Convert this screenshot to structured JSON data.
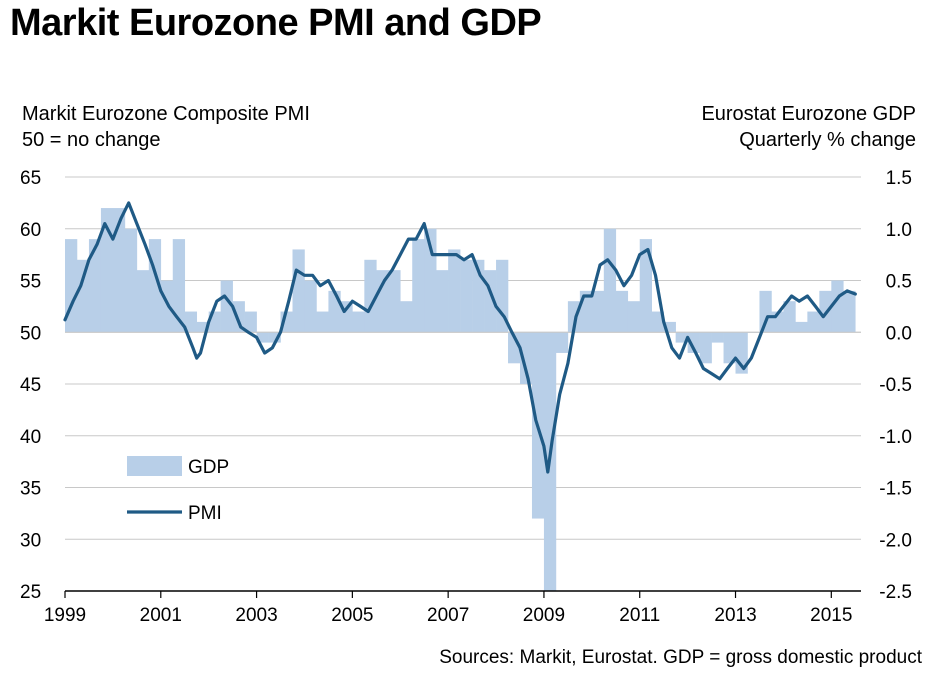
{
  "title": "Markit Eurozone PMI and GDP",
  "left_axis_title": [
    "Markit Eurozone Composite PMI",
    "50 = no change"
  ],
  "right_axis_title": [
    "Eurostat Eurozone GDP",
    "Quarterly % change"
  ],
  "source": "Sources: Markit, Eurostat. GDP = gross domestic product",
  "colors": {
    "gdp": "#b8cfe8",
    "pmi": "#1f5a85",
    "grid": "#c8c8c8"
  },
  "chart_data": {
    "type": "bar+line",
    "grid": true,
    "legend_position": "lower-left",
    "x_ticks": [
      "1999",
      "2001",
      "2003",
      "2005",
      "2007",
      "2009",
      "2011",
      "2013",
      "2015"
    ],
    "y_left": {
      "label": "Markit Eurozone Composite PMI",
      "ticks": [
        "65",
        "60",
        "55",
        "50",
        "45",
        "40",
        "35",
        "30",
        "25"
      ],
      "lim": [
        25,
        65
      ]
    },
    "y_right": {
      "label": "Eurostat Eurozone GDP",
      "ticks": [
        "1.5",
        "1.0",
        "0.5",
        "0.0",
        "-0.5",
        "-1.0",
        "-1.5",
        "-2.0",
        "-2.5"
      ],
      "lim": [
        -2.5,
        1.5
      ]
    },
    "series": [
      {
        "name": "GDP",
        "kind": "bar",
        "axis": "right",
        "start": 1999.0,
        "step": 0.25,
        "values": [
          0.9,
          0.7,
          0.9,
          1.2,
          1.2,
          1.0,
          0.6,
          0.9,
          0.5,
          0.9,
          0.2,
          0.1,
          0.2,
          0.5,
          0.3,
          0.2,
          -0.1,
          -0.1,
          0.2,
          0.8,
          0.5,
          0.2,
          0.4,
          0.3,
          0.2,
          0.7,
          0.6,
          0.6,
          0.3,
          0.9,
          1.0,
          0.6,
          0.8,
          0.7,
          0.7,
          0.6,
          0.7,
          -0.3,
          -0.5,
          -1.8,
          -2.5,
          -0.2,
          0.3,
          0.4,
          0.4,
          1.0,
          0.4,
          0.3,
          0.9,
          0.2,
          0.1,
          -0.1,
          -0.2,
          -0.3,
          -0.1,
          -0.3,
          -0.4,
          0.0,
          0.4,
          0.2,
          0.3,
          0.1,
          0.2,
          0.4,
          0.5,
          0.4
        ]
      },
      {
        "name": "PMI",
        "kind": "line",
        "axis": "left",
        "x": [
          1999.0,
          1999.17,
          1999.33,
          1999.5,
          1999.67,
          1999.83,
          2000.0,
          2000.17,
          2000.33,
          2000.5,
          2000.67,
          2000.83,
          2001.0,
          2001.17,
          2001.33,
          2001.5,
          2001.67,
          2001.75,
          2001.83,
          2002.0,
          2002.17,
          2002.33,
          2002.5,
          2002.67,
          2002.83,
          2003.0,
          2003.17,
          2003.33,
          2003.5,
          2003.67,
          2003.83,
          2004.0,
          2004.17,
          2004.33,
          2004.5,
          2004.67,
          2004.83,
          2005.0,
          2005.17,
          2005.33,
          2005.5,
          2005.67,
          2005.83,
          2006.0,
          2006.17,
          2006.33,
          2006.5,
          2006.67,
          2006.83,
          2007.0,
          2007.17,
          2007.33,
          2007.5,
          2007.67,
          2007.83,
          2008.0,
          2008.17,
          2008.33,
          2008.5,
          2008.67,
          2008.83,
          2009.0,
          2009.08,
          2009.17,
          2009.33,
          2009.5,
          2009.67,
          2009.83,
          2010.0,
          2010.17,
          2010.33,
          2010.5,
          2010.67,
          2010.83,
          2011.0,
          2011.17,
          2011.33,
          2011.5,
          2011.67,
          2011.83,
          2012.0,
          2012.17,
          2012.33,
          2012.5,
          2012.67,
          2012.83,
          2013.0,
          2013.17,
          2013.33,
          2013.5,
          2013.67,
          2013.83,
          2014.0,
          2014.17,
          2014.33,
          2014.5,
          2014.67,
          2014.83,
          2015.0,
          2015.17,
          2015.33,
          2015.5
        ],
        "values": [
          51.2,
          53.0,
          54.5,
          57.0,
          58.5,
          60.5,
          59.0,
          61.0,
          62.5,
          60.5,
          58.5,
          56.5,
          54.0,
          52.5,
          51.5,
          50.5,
          48.5,
          47.5,
          48.0,
          51.0,
          53.0,
          53.5,
          52.5,
          50.5,
          50.0,
          49.5,
          48.0,
          48.5,
          50.0,
          53.0,
          56.0,
          55.5,
          55.5,
          54.5,
          55.0,
          53.5,
          52.0,
          53.0,
          52.5,
          52.0,
          53.5,
          55.0,
          56.0,
          57.5,
          59.0,
          59.0,
          60.5,
          57.5,
          57.5,
          57.5,
          57.5,
          57.0,
          57.5,
          55.5,
          54.5,
          52.5,
          51.5,
          50.0,
          48.5,
          45.5,
          41.5,
          39.0,
          36.5,
          39.5,
          44.0,
          47.0,
          51.5,
          53.5,
          53.5,
          56.5,
          57.0,
          56.0,
          54.5,
          55.5,
          57.5,
          58.0,
          55.5,
          51.0,
          48.5,
          47.5,
          49.5,
          48.0,
          46.5,
          46.0,
          45.5,
          46.5,
          47.5,
          46.5,
          47.5,
          49.5,
          51.5,
          51.5,
          52.5,
          53.5,
          53.0,
          53.5,
          52.5,
          51.5,
          52.5,
          53.5,
          54.0,
          53.7
        ]
      }
    ]
  }
}
